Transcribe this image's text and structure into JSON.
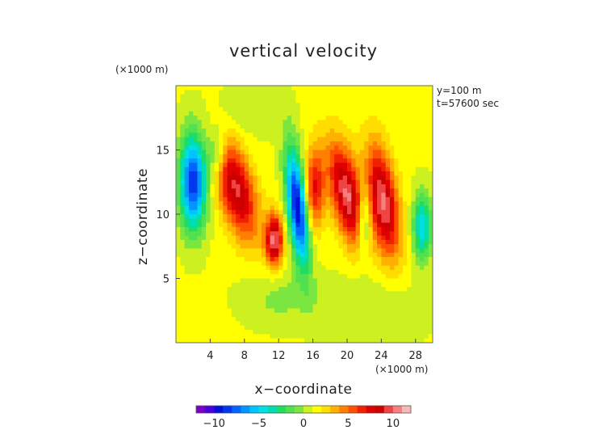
{
  "chart_data": {
    "type": "heatmap",
    "title": "vertical velocity",
    "xlabel": "x−coordinate",
    "ylabel": "z−coordinate",
    "x_unit": "(×1000 m)",
    "y_unit": "(×1000 m)",
    "annotations": [
      "y=100 m",
      "t=57600 sec"
    ],
    "xlim": [
      0,
      30
    ],
    "ylim": [
      0,
      20
    ],
    "x_ticks": [
      4,
      8,
      12,
      16,
      20,
      24,
      28
    ],
    "y_ticks": [
      5,
      10,
      15
    ],
    "colorbar": {
      "range": [
        -12,
        12
      ],
      "ticks": [
        -10,
        -5,
        0,
        5,
        10
      ],
      "tick_labels": [
        "−10",
        "−5",
        "0",
        "5",
        "10"
      ],
      "colors": [
        "#7a00c8",
        "#4a00d8",
        "#0010d8",
        "#0038ec",
        "#0066ff",
        "#0096ff",
        "#00c4ff",
        "#00e0e0",
        "#00ddb0",
        "#20dd60",
        "#50e050",
        "#7ce640",
        "#ccf020",
        "#ffff00",
        "#ffdd00",
        "#ffb000",
        "#ff8000",
        "#ff5000",
        "#f02000",
        "#e00000",
        "#cc0000",
        "#ee4444",
        "#f48080",
        "#f8b8b8"
      ]
    },
    "features": [
      {
        "x": 2.0,
        "z": 12.5,
        "w": -10,
        "sx": 1.1,
        "sz": 2.6
      },
      {
        "x": 4.8,
        "z": 14.8,
        "w": -4,
        "sx": 0.8,
        "sz": 1.4
      },
      {
        "x": 7.0,
        "z": 12.0,
        "w": 8,
        "sx": 1.5,
        "sz": 2.8,
        "shear": -0.35
      },
      {
        "x": 11.5,
        "z": 8.0,
        "w": 9,
        "sx": 0.7,
        "sz": 1.4
      },
      {
        "x": 14.2,
        "z": 10.5,
        "w": -11,
        "sx": 0.8,
        "sz": 3.2,
        "shear": -0.15
      },
      {
        "x": 16.2,
        "z": 12.0,
        "w": 6,
        "sx": 0.8,
        "sz": 2.2
      },
      {
        "x": 20.0,
        "z": 11.5,
        "w": 9,
        "sx": 1.3,
        "sz": 2.8,
        "shear": -0.3
      },
      {
        "x": 24.2,
        "z": 11.0,
        "w": 9,
        "sx": 1.2,
        "sz": 3.0,
        "shear": -0.2
      },
      {
        "x": 22.0,
        "z": 9.5,
        "w": -5,
        "sx": 0.6,
        "sz": 2.0
      },
      {
        "x": 28.8,
        "z": 9.0,
        "w": -6,
        "sx": 0.8,
        "sz": 1.8
      },
      {
        "x": 12.0,
        "z": 3.5,
        "w": -1.5,
        "sx": 3.0,
        "sz": 1.5
      },
      {
        "x": 23.0,
        "z": 2.5,
        "w": -1.2,
        "sx": 4.0,
        "sz": 2.0
      },
      {
        "x": 8.0,
        "z": 18.0,
        "w": -1,
        "sx": 3.0,
        "sz": 1.5
      }
    ]
  }
}
